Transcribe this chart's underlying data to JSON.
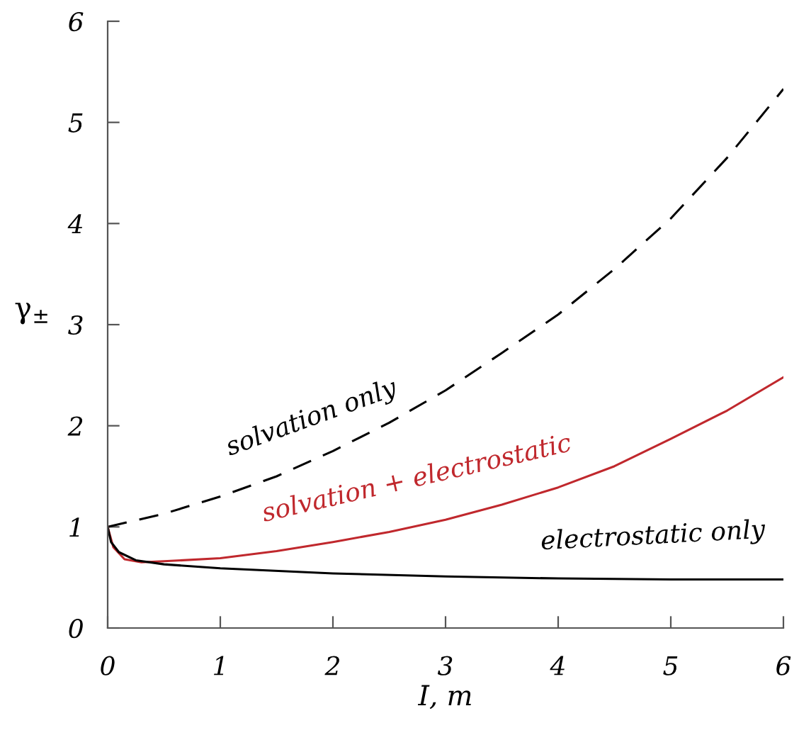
{
  "chart_data": {
    "type": "line",
    "xlabel": "I, m",
    "ylabel": "γ$_{±}$",
    "xlim": [
      0,
      6
    ],
    "ylim": [
      0,
      6
    ],
    "xticks": [
      0,
      1,
      2,
      3,
      4,
      5,
      6
    ],
    "yticks": [
      0,
      1,
      2,
      3,
      4,
      5,
      6
    ],
    "grid": false,
    "legend": false,
    "series": [
      {
        "name": "solvation only",
        "color": "#000000",
        "line_style": "dashed",
        "x": [
          0,
          0.5,
          1,
          1.5,
          2,
          2.5,
          3,
          3.5,
          4,
          4.5,
          5,
          5.5,
          6
        ],
        "values": [
          1,
          1.13,
          1.3,
          1.5,
          1.75,
          2.03,
          2.35,
          2.72,
          3.1,
          3.55,
          4.05,
          4.65,
          5.33
        ]
      },
      {
        "name": "solvation + electrostatic",
        "color": "#c0282d",
        "line_style": "solid",
        "x": [
          0,
          0.05,
          0.15,
          0.3,
          0.5,
          1,
          1.5,
          2,
          2.5,
          3,
          3.5,
          4,
          4.5,
          5,
          5.5,
          6
        ],
        "values": [
          1,
          0.8,
          0.68,
          0.65,
          0.66,
          0.69,
          0.76,
          0.85,
          0.95,
          1.07,
          1.22,
          1.39,
          1.6,
          1.87,
          2.15,
          2.48
        ]
      },
      {
        "name": "electrostatic only",
        "color": "#000000",
        "line_style": "solid",
        "x": [
          0,
          0.03,
          0.1,
          0.25,
          0.5,
          1,
          2,
          3,
          4,
          5,
          6
        ],
        "values": [
          1,
          0.85,
          0.75,
          0.67,
          0.63,
          0.59,
          0.54,
          0.51,
          0.49,
          0.48,
          0.48
        ]
      }
    ]
  }
}
